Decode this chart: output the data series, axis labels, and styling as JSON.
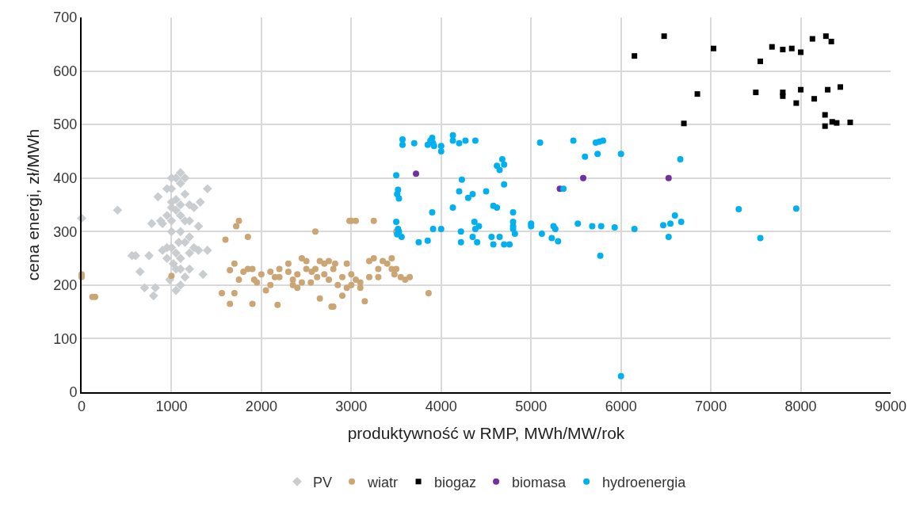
{
  "chart_data": {
    "type": "scatter",
    "xlabel": "produktywność w RMP, MWh/MW/rok",
    "ylabel": "cena energi, zł/MWh",
    "xlim": [
      0,
      9000
    ],
    "xticks": [
      0,
      1000,
      2000,
      3000,
      4000,
      5000,
      6000,
      7000,
      8000,
      9000
    ],
    "ylim": [
      0,
      700
    ],
    "yticks": [
      0,
      100,
      200,
      300,
      400,
      500,
      600,
      700
    ],
    "grid": true,
    "legend": "bottom",
    "series": [
      {
        "name": "PV",
        "color": "#c9cdd0",
        "marker": "diamond",
        "x": [
          0,
          400,
          600,
          650,
          700,
          750,
          780,
          800,
          820,
          850,
          900,
          950,
          950,
          980,
          1000,
          1000,
          1050,
          1050,
          1100,
          1100,
          1100,
          1100,
          1100,
          1100,
          1050,
          1150,
          1150,
          1150,
          1200,
          1200,
          1200,
          1250,
          1300,
          1320,
          1400,
          1350,
          1400,
          1000,
          1000,
          1000,
          1050,
          1050,
          1100,
          950,
          900,
          880,
          1020,
          1150,
          1200,
          1250,
          1080,
          1000,
          1100,
          1200,
          1300,
          560,
          1150,
          950,
          1050,
          1000
        ],
        "values": [
          325,
          340,
          255,
          225,
          195,
          255,
          315,
          180,
          195,
          365,
          315,
          270,
          330,
          210,
          400,
          380,
          360,
          340,
          410,
          390,
          300,
          250,
          230,
          200,
          190,
          400,
          370,
          320,
          350,
          260,
          230,
          345,
          265,
          355,
          380,
          220,
          265,
          320,
          300,
          270,
          260,
          230,
          350,
          380,
          265,
          320,
          240,
          280,
          290,
          270,
          280,
          355,
          330,
          320,
          310,
          255,
          215,
          250,
          400,
          345
        ]
      },
      {
        "name": "wiatr",
        "color": "#cba574",
        "marker": "circle",
        "x": [
          0,
          0,
          120,
          150,
          1000,
          1560,
          1600,
          1650,
          1700,
          1720,
          1750,
          1800,
          1850,
          1900,
          1920,
          1900,
          2000,
          2050,
          2100,
          2150,
          2180,
          2200,
          2300,
          2350,
          2400,
          2450,
          2500,
          2550,
          2600,
          2620,
          2650,
          2700,
          2750,
          2780,
          2800,
          2850,
          2900,
          2900,
          2950,
          2980,
          3000,
          3050,
          3050,
          3100,
          3150,
          3200,
          3250,
          3250,
          3300,
          3350,
          3400,
          3450,
          3500,
          3480,
          3500,
          3550,
          3600,
          3650,
          3860,
          2800,
          2820,
          2700,
          2600,
          2500,
          2400,
          2300,
          2200,
          2100,
          1950,
          1850,
          1700,
          1650,
          1750,
          3000,
          3000,
          2950,
          3100,
          3200,
          2750,
          2650,
          2560,
          2450,
          2350,
          3450,
          3300
        ],
        "values": [
          220,
          215,
          178,
          178,
          217,
          185,
          285,
          228,
          240,
          310,
          320,
          225,
          290,
          165,
          210,
          230,
          220,
          190,
          200,
          215,
          163,
          230,
          240,
          210,
          220,
          250,
          230,
          205,
          300,
          215,
          175,
          220,
          210,
          160,
          230,
          200,
          180,
          215,
          240,
          320,
          320,
          320,
          210,
          205,
          170,
          245,
          250,
          320,
          230,
          245,
          240,
          250,
          300,
          220,
          230,
          215,
          210,
          215,
          185,
          160,
          240,
          240,
          230,
          245,
          195,
          225,
          215,
          225,
          205,
          230,
          185,
          165,
          210,
          220,
          200,
          195,
          195,
          215,
          245,
          245,
          225,
          205,
          200,
          230,
          215
        ]
      },
      {
        "name": "biogaz",
        "color": "#000000",
        "marker": "square",
        "x": [
          6480,
          6150,
          7030,
          6850,
          6700,
          7500,
          7550,
          7680,
          7800,
          7800,
          7800,
          7900,
          7950,
          8000,
          8000,
          8130,
          8150,
          8280,
          8270,
          8270,
          8300,
          8340,
          8350,
          8400,
          8440,
          8550
        ],
        "values": [
          665,
          628,
          642,
          557,
          502,
          560,
          618,
          645,
          640,
          560,
          553,
          642,
          540,
          635,
          565,
          660,
          548,
          665,
          518,
          497,
          565,
          655,
          505,
          503,
          570,
          504
        ]
      },
      {
        "name": "biomasa",
        "color": "#7030a0",
        "marker": "circle",
        "x": [
          3720,
          5320,
          5580,
          6530
        ],
        "values": [
          408,
          380,
          400,
          400
        ]
      },
      {
        "name": "hydroenergia",
        "color": "#00b0f0",
        "marker": "circle",
        "x": [
          3500,
          3520,
          3510,
          3530,
          3500,
          3530,
          3510,
          3560,
          3520,
          3570,
          3570,
          3700,
          3850,
          3880,
          3900,
          3910,
          3920,
          4000,
          4000,
          4130,
          4130,
          4200,
          4270,
          4380,
          3750,
          3850,
          3900,
          3910,
          4000,
          4130,
          4200,
          4230,
          4300,
          4350,
          4220,
          4220,
          4350,
          4370,
          4400,
          4420,
          4380,
          4500,
          4580,
          4620,
          4650,
          4620,
          4560,
          4580,
          4650,
          4700,
          4760,
          4680,
          4700,
          4700,
          4800,
          4800,
          4800,
          4820,
          4800,
          5000,
          5000,
          5120,
          5100,
          5250,
          5270,
          5230,
          5300,
          5360,
          5470,
          5520,
          5600,
          5680,
          5720,
          5760,
          5800,
          5740,
          5780,
          5770,
          5930,
          6000,
          6000,
          6150,
          6470,
          6530,
          6600,
          6550,
          6660,
          6670,
          7310,
          7550,
          7950
        ],
        "values": [
          405,
          378,
          370,
          362,
          318,
          300,
          295,
          290,
          305,
          472,
          462,
          465,
          462,
          470,
          475,
          465,
          460,
          460,
          450,
          480,
          470,
          465,
          470,
          470,
          280,
          283,
          336,
          305,
          305,
          345,
          375,
          397,
          363,
          370,
          280,
          300,
          290,
          318,
          280,
          310,
          305,
          375,
          348,
          423,
          415,
          345,
          290,
          276,
          290,
          276,
          276,
          435,
          425,
          388,
          336,
          318,
          305,
          296,
          310,
          315,
          310,
          296,
          466,
          310,
          305,
          288,
          282,
          380,
          470,
          315,
          440,
          310,
          466,
          468,
          470,
          445,
          310,
          255,
          308,
          445,
          30,
          305,
          312,
          290,
          330,
          315,
          435,
          318,
          342,
          288,
          343
        ]
      }
    ]
  }
}
